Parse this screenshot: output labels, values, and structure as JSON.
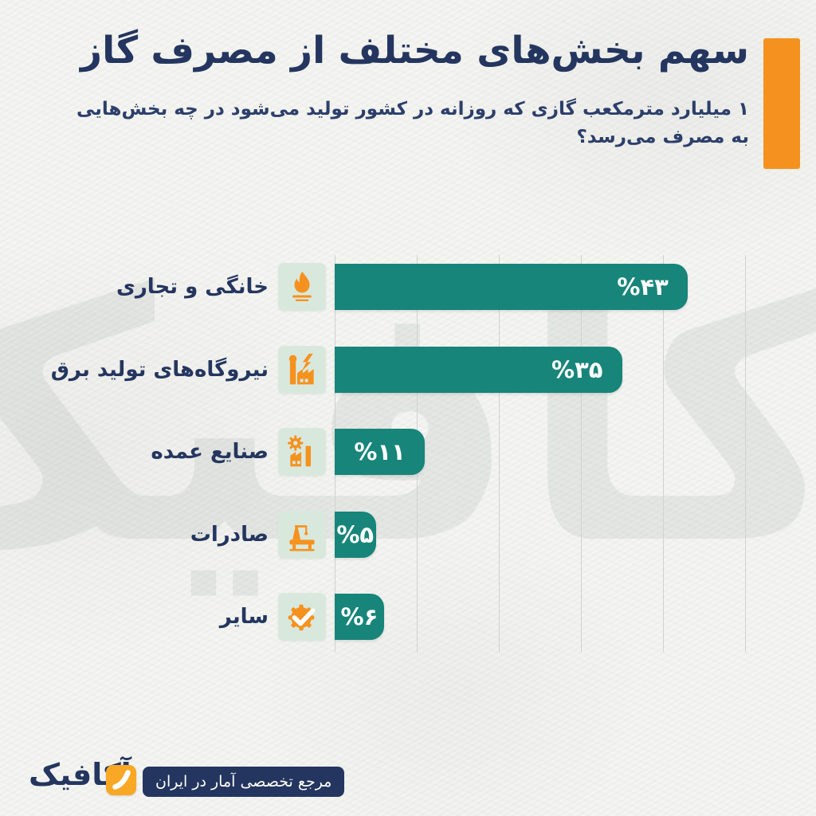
{
  "colors": {
    "accent_orange": "#f5921f",
    "bar_teal": "#17857a",
    "navy": "#24365f",
    "icon_tile_mint": "#d9e8dd",
    "background_paper": "#f1f1ee",
    "gridline": "#d0d3d0",
    "value_text": "#ffffff"
  },
  "header": {
    "title": "سهم بخش‌های مختلف از مصرف گاز",
    "subtitle_lines": [
      "۱ میلیارد مترمکعب گازی که روزانه در کشور تولید می‌شود در چه بخش‌هایی",
      "به مصرف می‌رسد؟"
    ]
  },
  "chart_data": {
    "type": "bar",
    "orientation": "horizontal",
    "title": "سهم بخش‌های مختلف از مصرف گاز",
    "unit": "درصد",
    "categories": [
      "خانگی و تجاری",
      "نیروگاه‌های تولید برق",
      "صنایع عمده",
      "صادرات",
      "سایر"
    ],
    "values": [
      43,
      35,
      11,
      5,
      6
    ],
    "value_labels": [
      "%۴۳",
      "%۳۵",
      "%۱۱",
      "%۵",
      "%۶"
    ],
    "icons": [
      "gas-flame",
      "power-plant-lightning",
      "factory-gear",
      "oil-export-rig",
      "gear-checkmark"
    ],
    "xlim": [
      0,
      50
    ],
    "gridlines": [
      0,
      10,
      20,
      30,
      40,
      50
    ],
    "grid": "vertical-light",
    "legend": false,
    "bar_color": "#17857a",
    "label_side": "left",
    "value_position": "inside-end"
  },
  "footer": {
    "brand": "آکافیک",
    "tagline": "مرجع تخصصی آمار در ایران"
  },
  "watermark_text": "آکافیک"
}
